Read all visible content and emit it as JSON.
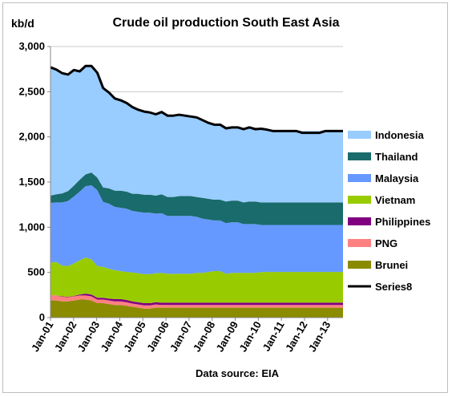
{
  "chart_data": {
    "type": "area",
    "title": "Crude oil  production South East Asia",
    "ylabel": "kb/d",
    "xlabel": "Data source: EIA",
    "ylim": [
      0,
      3000
    ],
    "y_ticks": [
      "0",
      "500",
      "1,000",
      "1,500",
      "2,000",
      "2,500",
      "3,000"
    ],
    "y_tick_values": [
      0,
      500,
      1000,
      1500,
      2000,
      2500,
      3000
    ],
    "x_ticks": [
      "Jan-01",
      "Jan-02",
      "Jan-03",
      "Jan-04",
      "Jan-05",
      "Jan-06",
      "Jan-07",
      "Jan-08",
      "Jan-09",
      "Jan-10",
      "Jan-11",
      "Jan-12",
      "Jan-13"
    ],
    "x_range": [
      "Jan-01",
      "Sep-13"
    ],
    "grid": "horizontal",
    "legend_position": "right",
    "stacked": true,
    "series": [
      {
        "name": "Brunei",
        "color": "#8B8B00",
        "values": [
          190,
          190,
          180,
          180,
          190,
          200,
          200,
          190,
          160,
          160,
          150,
          140,
          140,
          130,
          120,
          110,
          100,
          100,
          110,
          110,
          110,
          110,
          110,
          110,
          110,
          110,
          110,
          110,
          110,
          110,
          110,
          110,
          110,
          110,
          110,
          110,
          110,
          110,
          110,
          110,
          110,
          110,
          110,
          110,
          110,
          110,
          110,
          110,
          110,
          110,
          110
        ]
      },
      {
        "name": "PNG",
        "color": "#FF8080",
        "values": [
          60,
          55,
          50,
          45,
          45,
          45,
          45,
          45,
          40,
          40,
          40,
          40,
          40,
          40,
          35,
          35,
          35,
          35,
          35,
          30,
          30,
          30,
          30,
          30,
          30,
          30,
          30,
          30,
          30,
          30,
          30,
          30,
          30,
          30,
          30,
          30,
          30,
          30,
          30,
          30,
          30,
          30,
          30,
          30,
          30,
          30,
          30,
          30,
          30,
          30,
          30
        ]
      },
      {
        "name": "Philippines",
        "color": "#800080",
        "values": [
          0,
          0,
          5,
          5,
          5,
          10,
          20,
          20,
          20,
          20,
          20,
          25,
          25,
          25,
          25,
          25,
          25,
          25,
          25,
          25,
          25,
          25,
          25,
          25,
          25,
          25,
          25,
          25,
          25,
          25,
          25,
          25,
          25,
          25,
          25,
          25,
          25,
          25,
          25,
          25,
          25,
          25,
          25,
          25,
          25,
          25,
          25,
          25,
          25,
          25,
          25
        ]
      },
      {
        "name": "Vietnam",
        "color": "#99CC00",
        "values": [
          360,
          370,
          340,
          340,
          360,
          380,
          400,
          390,
          350,
          340,
          330,
          320,
          310,
          310,
          320,
          320,
          320,
          320,
          320,
          330,
          320,
          320,
          320,
          320,
          320,
          330,
          330,
          340,
          350,
          350,
          320,
          330,
          330,
          330,
          330,
          330,
          340,
          340,
          340,
          340,
          340,
          340,
          340,
          340,
          340,
          340,
          340,
          340,
          340,
          340,
          340
        ]
      },
      {
        "name": "Malaysia",
        "color": "#6699FF",
        "values": [
          660,
          660,
          700,
          720,
          740,
          760,
          790,
          820,
          840,
          720,
          720,
          700,
          700,
          700,
          680,
          680,
          680,
          680,
          660,
          660,
          640,
          640,
          640,
          640,
          640,
          620,
          600,
          580,
          560,
          560,
          560,
          560,
          560,
          540,
          540,
          540,
          520,
          520,
          520,
          520,
          520,
          520,
          520,
          520,
          520,
          520,
          520,
          520,
          520,
          520,
          520
        ]
      },
      {
        "name": "Thailand",
        "color": "#1A6B6B",
        "values": [
          80,
          90,
          100,
          110,
          120,
          130,
          130,
          140,
          140,
          160,
          170,
          180,
          190,
          190,
          190,
          200,
          200,
          200,
          200,
          210,
          210,
          210,
          220,
          220,
          220,
          220,
          230,
          230,
          230,
          230,
          240,
          240,
          240,
          240,
          250,
          250,
          250,
          250,
          250,
          250,
          250,
          250,
          250,
          250,
          250,
          250,
          250,
          250,
          250,
          250,
          250
        ]
      },
      {
        "name": "Indonesia",
        "color": "#99CCFF",
        "values": [
          1420,
          1380,
          1330,
          1290,
          1280,
          1200,
          1200,
          1180,
          1160,
          1100,
          1060,
          1020,
          1000,
          980,
          960,
          940,
          920,
          910,
          900,
          910,
          900,
          900,
          900,
          890,
          880,
          880,
          860,
          840,
          830,
          830,
          820,
          820,
          820,
          820,
          830,
          820,
          820,
          810,
          800,
          800,
          800,
          800,
          800,
          790,
          790,
          790,
          790,
          800,
          800,
          800,
          800
        ]
      },
      {
        "name": "Series8",
        "color": "#000000",
        "type": "line",
        "values": [
          2770,
          2745,
          2705,
          2690,
          2740,
          2725,
          2785,
          2785,
          2710,
          2540,
          2490,
          2425,
          2405,
          2375,
          2330,
          2300,
          2280,
          2270,
          2250,
          2275,
          2235,
          2235,
          2245,
          2235,
          2225,
          2215,
          2185,
          2155,
          2135,
          2135,
          2095,
          2105,
          2105,
          2085,
          2105,
          2085,
          2090,
          2080,
          2065,
          2065,
          2065,
          2065,
          2065,
          2045,
          2045,
          2045,
          2045,
          2065,
          2065,
          2065,
          2065
        ]
      }
    ]
  }
}
